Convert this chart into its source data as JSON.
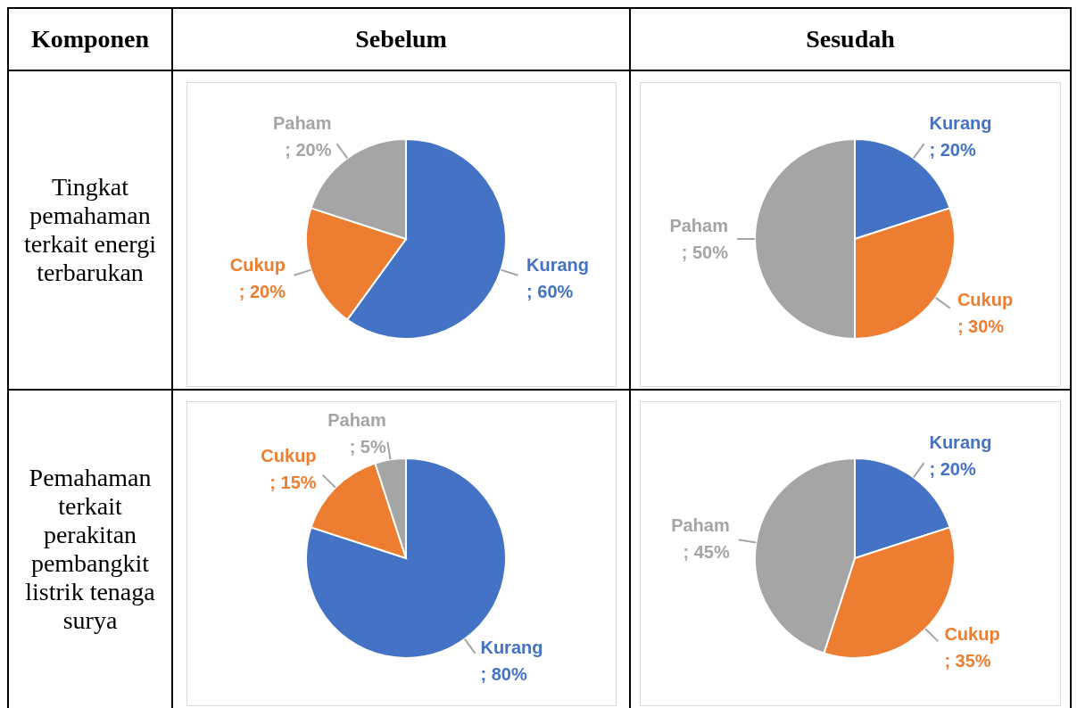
{
  "chart_data": [
    {
      "type": "other",
      "annotations": [
        "Komponen",
        "Sebelum",
        "Sesudah",
        "Tingkat pemahaman terkait energi terbarukan",
        "Pemahaman terkait perakitan pembangkit listrik tenaga surya"
      ]
    },
    {
      "type": "pie",
      "categories": [
        "Kurang",
        "Cukup",
        "Paham"
      ],
      "values": [
        60,
        20,
        20
      ],
      "value_labels": [
        "; 60%",
        "; 20%",
        "; 20%"
      ],
      "colors": [
        "#4472c4",
        "#ed7d31",
        "#a5a5a5"
      ]
    },
    {
      "type": "pie",
      "categories": [
        "Kurang",
        "Cukup",
        "Paham"
      ],
      "values": [
        20,
        30,
        50
      ],
      "value_labels": [
        "; 20%",
        "; 30%",
        "; 50%"
      ],
      "colors": [
        "#4472c4",
        "#ed7d31",
        "#a5a5a5"
      ]
    },
    {
      "type": "pie",
      "categories": [
        "Kurang",
        "Cukup",
        "Paham"
      ],
      "values": [
        80,
        15,
        5
      ],
      "value_labels": [
        "; 80%",
        "; 15%",
        "; 5%"
      ],
      "colors": [
        "#4472c4",
        "#ed7d31",
        "#a5a5a5"
      ]
    },
    {
      "type": "pie",
      "categories": [
        "Kurang",
        "Cukup",
        "Paham"
      ],
      "values": [
        20,
        35,
        45
      ],
      "value_labels": [
        "; 20%",
        "; 35%",
        "; 45%"
      ],
      "colors": [
        "#4472c4",
        "#ed7d31",
        "#a5a5a5"
      ]
    }
  ]
}
